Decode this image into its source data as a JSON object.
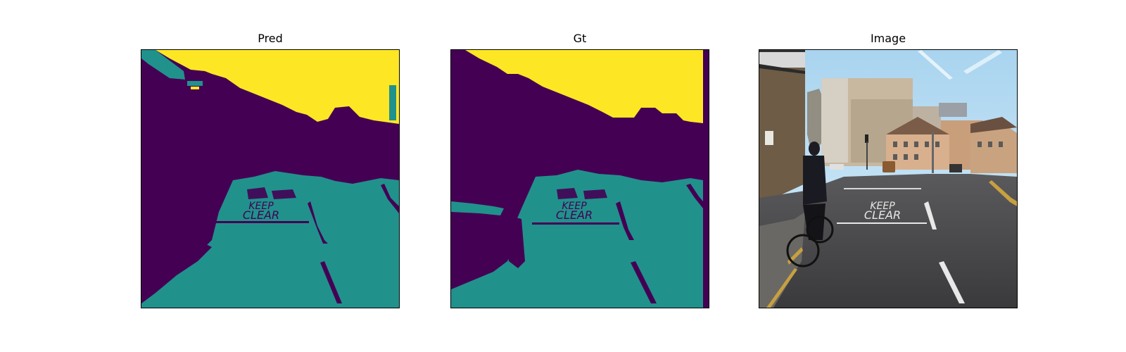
{
  "figure": {
    "panels": [
      {
        "id": "pred",
        "title": "Pred",
        "kind": "segmentation-mask"
      },
      {
        "id": "gt",
        "title": "Gt",
        "kind": "segmentation-mask"
      },
      {
        "id": "image",
        "title": "Image",
        "kind": "photo"
      }
    ],
    "classes": [
      {
        "name": "sky",
        "color": "#fde725"
      },
      {
        "name": "road",
        "color": "#21918c"
      },
      {
        "name": "background",
        "color": "#440154"
      }
    ],
    "road_marking_text": [
      "KEEP",
      "CLEAR"
    ]
  }
}
